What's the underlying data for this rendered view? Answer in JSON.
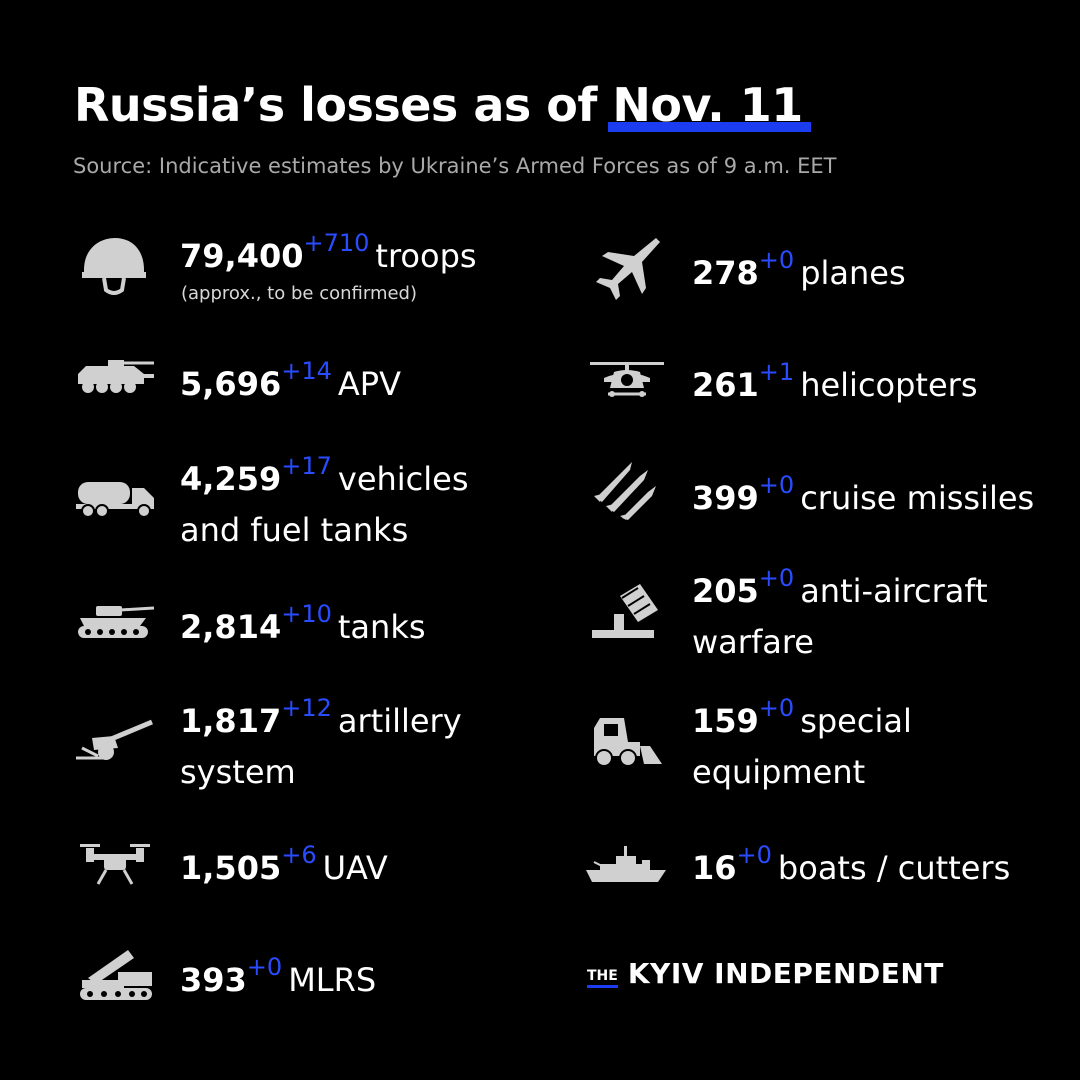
{
  "header": {
    "title_prefix": "Russia’s losses as of",
    "title_date": "Nov. 11",
    "source": "Source: Indicative estimates by Ukraine’s Armed Forces as of 9 a.m. EET"
  },
  "left": [
    {
      "icon": "helmet-icon",
      "value": "79,400",
      "delta": "+710",
      "label": "troops",
      "label2": "",
      "note": "(approx., to be confirmed)"
    },
    {
      "icon": "apv-icon",
      "value": "5,696",
      "delta": "+14",
      "label": "APV",
      "label2": "",
      "note": ""
    },
    {
      "icon": "fuel-truck-icon",
      "value": "4,259",
      "delta": "+17",
      "label": "vehicles",
      "label2": "and fuel tanks",
      "note": ""
    },
    {
      "icon": "tank-icon",
      "value": "2,814",
      "delta": "+10",
      "label": "tanks",
      "label2": "",
      "note": ""
    },
    {
      "icon": "artillery-icon",
      "value": "1,817",
      "delta": "+12",
      "label": "artillery",
      "label2": "system",
      "note": ""
    },
    {
      "icon": "drone-icon",
      "value": "1,505",
      "delta": "+6",
      "label": "UAV",
      "label2": "",
      "note": ""
    },
    {
      "icon": "mlrs-icon",
      "value": "393",
      "delta": "+0",
      "label": "MLRS",
      "label2": "",
      "note": ""
    }
  ],
  "right": [
    {
      "icon": "jet-icon",
      "value": "278",
      "delta": "+0",
      "label": "planes",
      "label2": ""
    },
    {
      "icon": "helicopter-icon",
      "value": "261",
      "delta": "+1",
      "label": "helicopters",
      "label2": ""
    },
    {
      "icon": "missiles-icon",
      "value": "399",
      "delta": "+0",
      "label": "cruise missiles",
      "label2": ""
    },
    {
      "icon": "anti-aircraft-icon",
      "value": "205",
      "delta": "+0",
      "label": "anti-aircraft",
      "label2": "warfare"
    },
    {
      "icon": "bulldozer-icon",
      "value": "159",
      "delta": "+0",
      "label": "special",
      "label2": "equipment"
    },
    {
      "icon": "warship-icon",
      "value": "16",
      "delta": "+0",
      "label": "boats / cutters",
      "label2": ""
    }
  ],
  "brand": {
    "the": "THE",
    "name": "KYIV INDEPENDENT"
  },
  "colors": {
    "background": "#000000",
    "accent": "#1c3cf0",
    "delta": "#2a4cff",
    "icon": "#d0d0d0"
  }
}
